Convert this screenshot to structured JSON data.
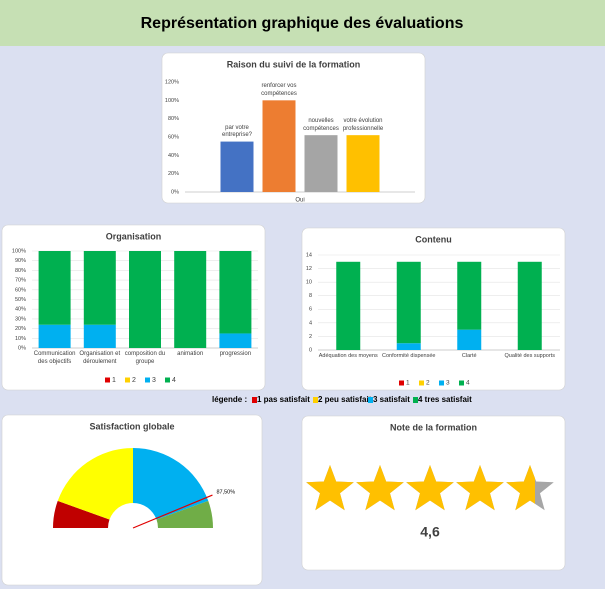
{
  "header": {
    "title": "Représentation graphique des évaluations"
  },
  "chart_data": [
    {
      "type": "bar",
      "title": "Raison du suivi de la formation",
      "categories": [
        "Oui"
      ],
      "series": [
        {
          "name": "par votre entreprise?",
          "color": "#4472c4",
          "values": [
            55
          ]
        },
        {
          "name": "renforcer vos compétences",
          "color": "#ed7d31",
          "values": [
            100
          ]
        },
        {
          "name": "nouvelles compétences",
          "color": "#a5a5a5",
          "values": [
            62
          ]
        },
        {
          "name": "votre évolution professionnelle",
          "color": "#ffc000",
          "values": [
            62
          ]
        }
      ],
      "ylim": [
        0,
        120
      ],
      "yticks": [
        {
          "value": 0,
          "label": "0%"
        },
        {
          "value": 20,
          "label": "20%"
        },
        {
          "value": 40,
          "label": "40%"
        },
        {
          "value": 60,
          "label": "60%"
        },
        {
          "value": 80,
          "label": "80%"
        },
        {
          "value": 100,
          "label": "100%"
        },
        {
          "value": 120,
          "label": "120%"
        }
      ],
      "grid": false
    },
    {
      "type": "stacked",
      "title": "Organisation",
      "categories": [
        "Communication des objectifs",
        "Organisation et déroulement",
        "composition du groupe",
        "animation",
        "progression"
      ],
      "series": [
        {
          "name": "1",
          "color": "#e00000",
          "values": [
            0,
            0,
            0,
            0,
            0
          ]
        },
        {
          "name": "2",
          "color": "#ffd000",
          "values": [
            0,
            0,
            0,
            0,
            0
          ]
        },
        {
          "name": "3",
          "color": "#00b0f0",
          "values": [
            24,
            24,
            0,
            0,
            15
          ]
        },
        {
          "name": "4",
          "color": "#00b050",
          "values": [
            76,
            76,
            100,
            100,
            85
          ]
        }
      ],
      "ylim": [
        0,
        100
      ],
      "yticks": [
        {
          "value": 0,
          "label": "0%"
        },
        {
          "value": 10,
          "label": "10%"
        },
        {
          "value": 20,
          "label": "20%"
        },
        {
          "value": 30,
          "label": "30%"
        },
        {
          "value": 40,
          "label": "40%"
        },
        {
          "value": 50,
          "label": "50%"
        },
        {
          "value": 60,
          "label": "60%"
        },
        {
          "value": 70,
          "label": "70%"
        },
        {
          "value": 80,
          "label": "80%"
        },
        {
          "value": 90,
          "label": "90%"
        },
        {
          "value": 100,
          "label": "100%"
        }
      ],
      "grid": true
    },
    {
      "type": "stacked",
      "title": "Contenu",
      "categories": [
        "Adéquation des moyens",
        "Conformité dispensée",
        "Clarté",
        "Qualité des supports"
      ],
      "series": [
        {
          "name": "1",
          "color": "#e00000",
          "values": [
            0,
            0,
            0,
            0
          ]
        },
        {
          "name": "2",
          "color": "#ffd000",
          "values": [
            0,
            0,
            0,
            0
          ]
        },
        {
          "name": "3",
          "color": "#00b0f0",
          "values": [
            0,
            1,
            3,
            0
          ]
        },
        {
          "name": "4",
          "color": "#00b050",
          "values": [
            13,
            12,
            10,
            13
          ]
        }
      ],
      "ylim": [
        0,
        14
      ],
      "yticks": [
        0,
        2,
        4,
        6,
        8,
        10,
        12,
        14
      ],
      "grid": true
    },
    {
      "type": "gauge",
      "title": "Satisfaction globale",
      "colors": [
        "#c00000",
        "#ffff00",
        "#00b0f0",
        "#70ad47"
      ],
      "values": [
        11,
        39,
        39,
        11
      ],
      "value": 87.5,
      "value_label": "87,50%"
    },
    {
      "type": "rating",
      "title": "Note de la formation",
      "value": 4.6,
      "max": 5,
      "value_label": "4,6",
      "color": "#ffc000"
    }
  ],
  "legend_note": {
    "label": "légende :",
    "items": [
      {
        "name": "1 pas satisfait",
        "color": "#e00000"
      },
      {
        "name": "2 peu satisfait",
        "color": "#ffd000"
      },
      {
        "name": "3 satisfait",
        "color": "#00b0f0"
      },
      {
        "name": "4 tres satisfait",
        "color": "#00b050"
      }
    ]
  }
}
